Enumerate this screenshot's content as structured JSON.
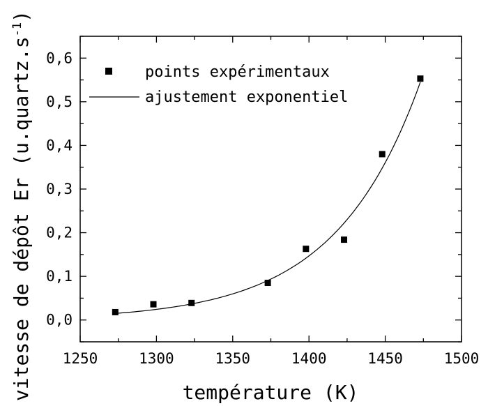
{
  "chart_data": {
    "type": "scatter",
    "xlabel": "température (K)",
    "ylabel": "vitesse de dépôt Er (u.quartz.s",
    "ylabel_superscript": "-1",
    "ylabel_close": ")",
    "xlim": [
      1250,
      1500
    ],
    "ylim": [
      -0.05,
      0.65
    ],
    "x_ticks": [
      1250,
      1300,
      1350,
      1400,
      1450,
      1500
    ],
    "x_tick_labels": [
      "1250",
      "1300",
      "1350",
      "1400",
      "1450",
      "1500"
    ],
    "y_ticks": [
      0.0,
      0.1,
      0.2,
      0.3,
      0.4,
      0.5,
      0.6
    ],
    "y_tick_labels": [
      "0,0",
      "0,1",
      "0,2",
      "0,3",
      "0,4",
      "0,5",
      "0,6"
    ],
    "x_minor_step": 25,
    "y_minor_step": 0.05,
    "grid": false,
    "legend_position": "top-left",
    "series": [
      {
        "name": "points expérimentaux",
        "kind": "markers",
        "marker": "square",
        "color": "#000000",
        "x": [
          1273,
          1298,
          1323,
          1373,
          1398,
          1423,
          1448,
          1473
        ],
        "y": [
          0.018,
          0.036,
          0.039,
          0.085,
          0.163,
          0.184,
          0.38,
          0.553
        ]
      },
      {
        "name": "ajustement exponentiel",
        "kind": "line",
        "color": "#000000",
        "x": [
          1273,
          1473
        ],
        "y": [
          0.015,
          0.545
        ]
      }
    ]
  }
}
